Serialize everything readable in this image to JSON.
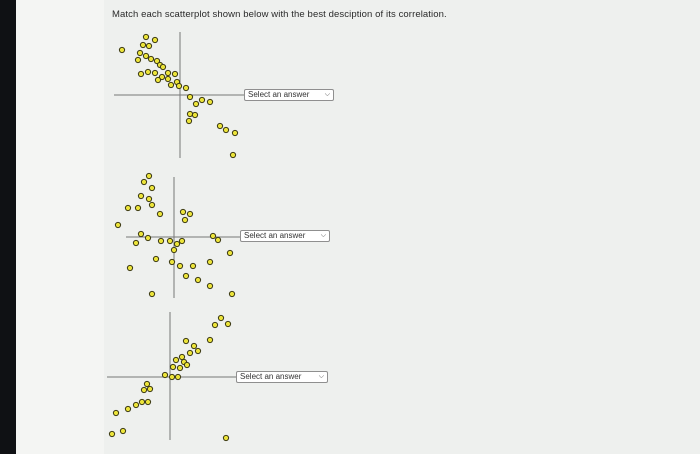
{
  "instruction": "Match each scatterplot shown below with the best desciption of its correlation.",
  "questions": [
    {
      "select_text": "Select an answer"
    },
    {
      "select_text": "Select an answer"
    },
    {
      "select_text": "Select an answer"
    }
  ],
  "icons": {
    "dropdown": "chevron-down-icon"
  },
  "colors": {
    "point_fill": "#ece43a",
    "point_stroke": "#3c3a14",
    "axis": "#777777"
  }
}
